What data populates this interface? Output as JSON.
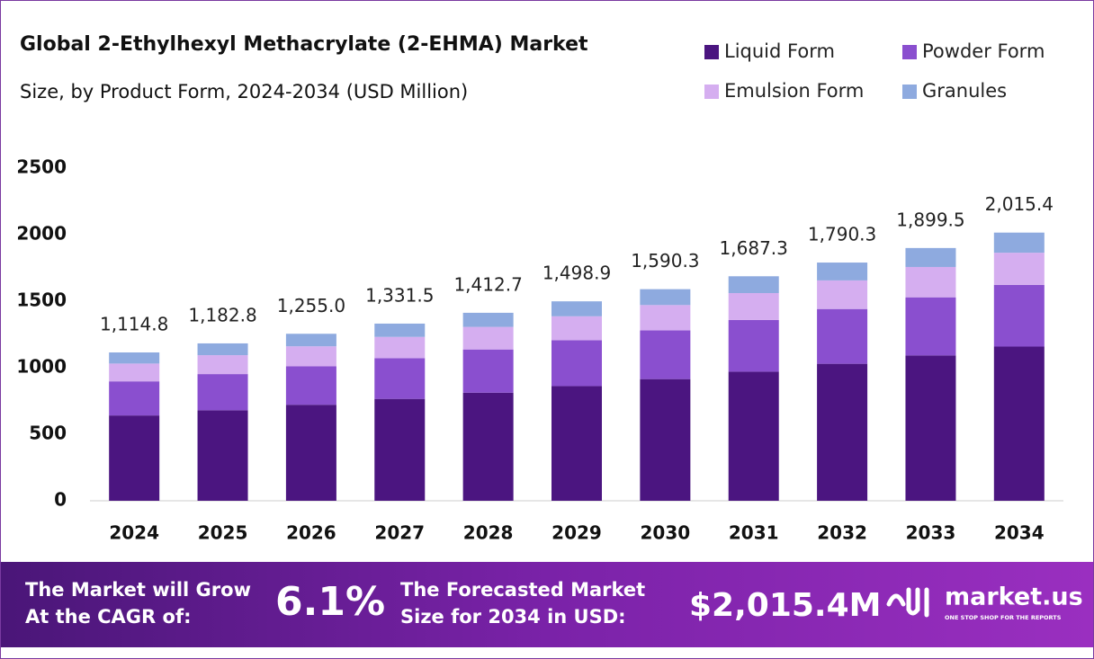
{
  "chart_data": {
    "type": "stacked_bar",
    "title": "Global 2-Ethylhexyl Methacrylate (2-EHMA) Market",
    "subtitle": "Size, by Product Form, 2024-2034 (USD Million)",
    "categories": [
      "2024",
      "2025",
      "2026",
      "2027",
      "2028",
      "2029",
      "2030",
      "2031",
      "2032",
      "2033",
      "2034"
    ],
    "series": [
      {
        "name": "Liquid Form",
        "color": "#4b1580",
        "values": [
          641.0,
          680.1,
          721.6,
          765.6,
          812.3,
          861.9,
          914.4,
          970.2,
          1029.4,
          1092.2,
          1158.9
        ]
      },
      {
        "name": "Powder Form",
        "color": "#8a4fcf",
        "values": [
          256.4,
          272.0,
          288.7,
          306.2,
          324.9,
          344.7,
          365.8,
          388.1,
          411.8,
          436.9,
          463.5
        ]
      },
      {
        "name": "Emulsion Form",
        "color": "#d5aef0",
        "values": [
          133.8,
          141.9,
          150.6,
          159.8,
          169.5,
          179.9,
          190.8,
          202.5,
          214.8,
          227.9,
          241.8
        ]
      },
      {
        "name": "Granules",
        "color": "#8eaadf",
        "values": [
          83.6,
          88.8,
          94.1,
          99.9,
          106.0,
          112.4,
          119.3,
          126.5,
          134.3,
          142.5,
          151.2
        ]
      }
    ],
    "totals": [
      1114.8,
      1182.8,
      1255.0,
      1331.5,
      1412.7,
      1498.9,
      1590.3,
      1687.3,
      1790.3,
      1899.5,
      2015.4
    ],
    "value_labels": [
      "1,114.8",
      "1,182.8",
      "1,255.0",
      "1,331.5",
      "1,412.7",
      "1,498.9",
      "1,590.3",
      "1,687.3",
      "1,790.3",
      "1,899.5",
      "2,015.4"
    ],
    "ylim": [
      0,
      2500
    ],
    "yticks": [
      0,
      500,
      1000,
      1500,
      2000,
      2500
    ],
    "grid": false,
    "legend": "top-right"
  },
  "footer": {
    "cagr_line1": "The Market will Grow",
    "cagr_line2": "At the CAGR of:",
    "cagr": "6.1%",
    "forecast_line1": "The Forecasted Market",
    "forecast_line2": "Size for 2034 in USD:",
    "forecast": "$2,015.4M",
    "brand": "market.us",
    "tagline": "ONE STOP SHOP FOR THE REPORTS"
  }
}
